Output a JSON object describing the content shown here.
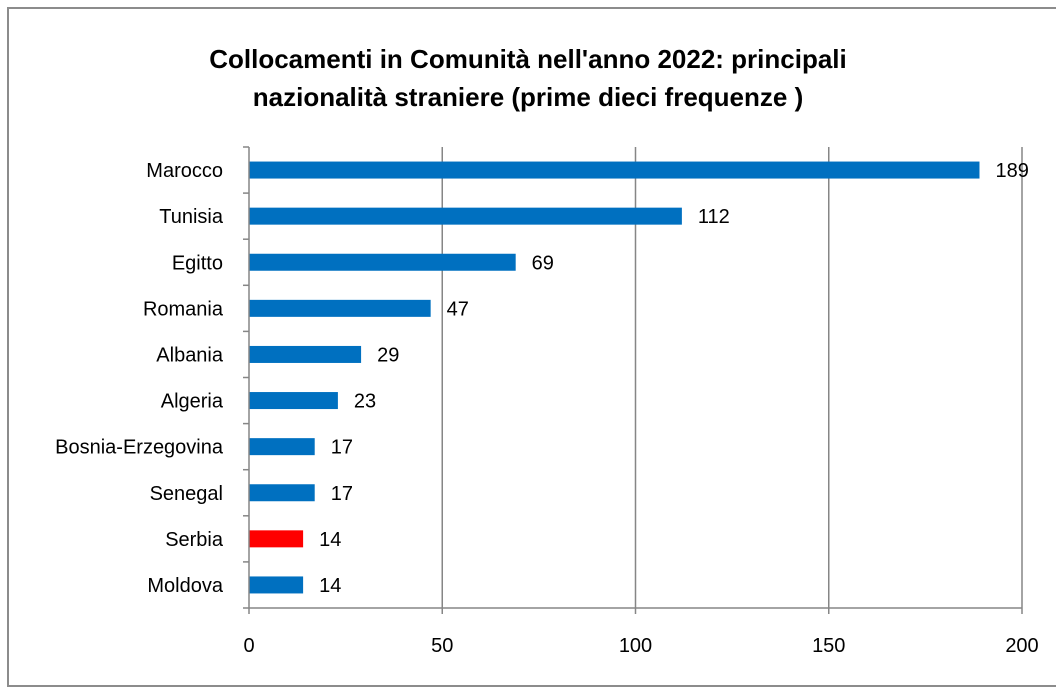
{
  "chart_data": {
    "type": "bar",
    "orientation": "horizontal",
    "title_lines": [
      "Collocamenti in Comunità nell'anno 2022: principali",
      "nazionalità straniere (prime dieci frequenze )"
    ],
    "categories": [
      "Marocco",
      "Tunisia",
      "Egitto",
      "Romania",
      "Albania",
      "Algeria",
      "Bosnia-Erzegovina",
      "Senegal",
      "Serbia",
      "Moldova"
    ],
    "values": [
      189,
      112,
      69,
      47,
      29,
      23,
      17,
      17,
      14,
      14
    ],
    "bar_colors": [
      "#0070c0",
      "#0070c0",
      "#0070c0",
      "#0070c0",
      "#0070c0",
      "#0070c0",
      "#0070c0",
      "#0070c0",
      "#ff0000",
      "#0070c0"
    ],
    "xlim": [
      0,
      200
    ],
    "x_ticks": [
      0,
      50,
      100,
      150,
      200
    ],
    "grid": "vertical",
    "legend": "none",
    "data_labels": true
  }
}
